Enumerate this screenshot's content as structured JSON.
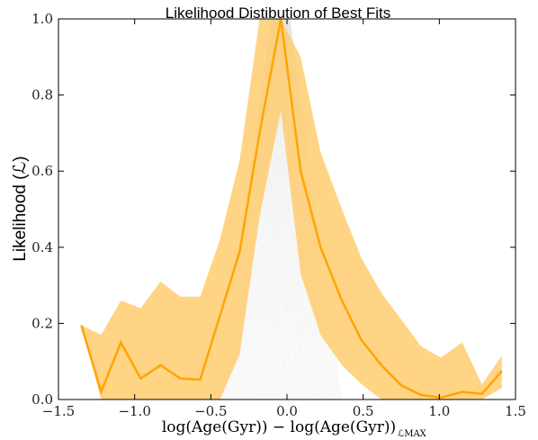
{
  "chart_data": {
    "type": "line",
    "title": "Likelihood Distibution of Best Fits",
    "xlabel": "log(Age(Gyr)) − log(Age(Gyr))",
    "xlabel_subscript": "ℒMAX",
    "ylabel": "Likelihood (ℒ)",
    "xlim": [
      -1.5,
      1.5
    ],
    "ylim": [
      0.0,
      1.0
    ],
    "x_ticks": [
      "−1.5",
      "−1.0",
      "−0.5",
      "0.0",
      "0.5",
      "1.0",
      "1.5"
    ],
    "y_ticks": [
      "0.0",
      "0.2",
      "0.4",
      "0.6",
      "0.8",
      "1.0"
    ],
    "grid": false,
    "legend": "none",
    "colors": {
      "line": "#ffa500",
      "band": "#ffc966",
      "background_fits": "#d9d9d9"
    },
    "x": [
      -1.35,
      -1.22,
      -1.09,
      -0.96,
      -0.83,
      -0.7,
      -0.57,
      -0.44,
      -0.31,
      -0.18,
      -0.04,
      0.09,
      0.22,
      0.36,
      0.49,
      0.62,
      0.75,
      0.88,
      1.01,
      1.15,
      1.28,
      1.41
    ],
    "series": [
      {
        "values": [
          0.195,
          0.02,
          0.15,
          0.055,
          0.09,
          0.055,
          0.052,
          0.22,
          0.39,
          0.7,
          1.0,
          0.6,
          0.4,
          0.26,
          0.155,
          0.09,
          0.037,
          0.012,
          0.005,
          0.02,
          0.015,
          0.075
        ]
      }
    ],
    "band": {
      "upper": [
        0.195,
        0.17,
        0.26,
        0.24,
        0.31,
        0.27,
        0.27,
        0.42,
        0.63,
        1.0,
        1.0,
        0.9,
        0.65,
        0.5,
        0.37,
        0.28,
        0.21,
        0.14,
        0.11,
        0.15,
        0.04,
        0.115
      ],
      "lower": [
        0.195,
        0.0,
        0.0,
        0.0,
        0.0,
        0.0,
        0.0,
        0.0,
        0.12,
        0.48,
        0.76,
        0.33,
        0.17,
        0.09,
        0.04,
        0.0,
        0.0,
        0.0,
        0.0,
        0.0,
        0.0,
        0.03
      ]
    }
  }
}
